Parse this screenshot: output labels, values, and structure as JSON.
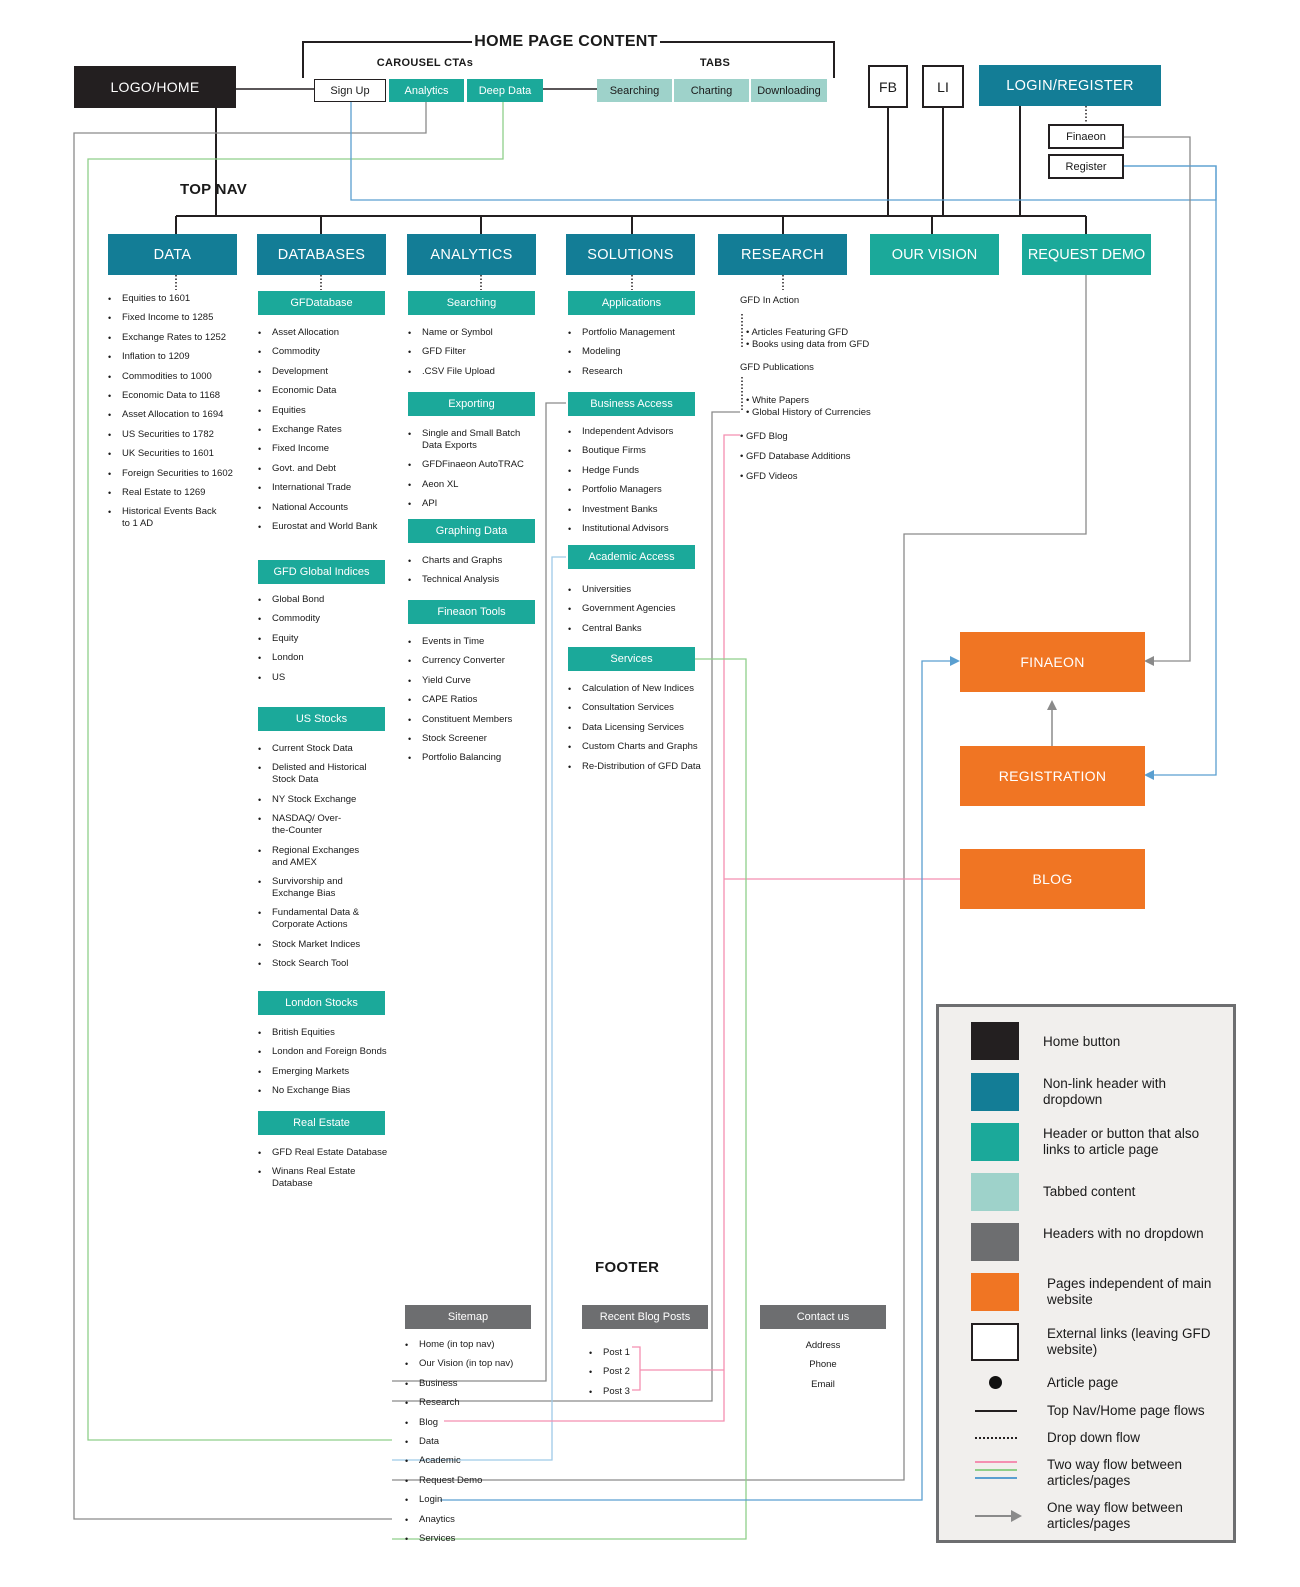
{
  "home_content": {
    "title": "HOME PAGE CONTENT",
    "carousel_label": "CAROUSEL CTAs",
    "tabs_label": "TABS",
    "cta_signup": "Sign Up",
    "cta_analytics": "Analytics",
    "cta_deep_data": "Deep Data",
    "tab_searching": "Searching",
    "tab_charting": "Charting",
    "tab_downloading": "Downloading"
  },
  "logo_home": "LOGO/HOME",
  "fb": "FB",
  "li": "LI",
  "login_register": "LOGIN/REGISTER",
  "finaeon_link": "Finaeon",
  "register_link": "Register",
  "top_nav_label": "TOP NAV",
  "nav": {
    "data": "DATA",
    "databases": "DATABASES",
    "analytics": "ANALYTICS",
    "solutions": "SOLUTIONS",
    "research": "RESEARCH",
    "our_vision": "OUR VISION",
    "request_demo": "REQUEST DEMO"
  },
  "data_items": [
    "Equities to 1601",
    "Fixed Income to 1285",
    "Exchange Rates to 1252",
    "Inflation to 1209",
    "Commodities to 1000",
    "Economic Data to 1168",
    "Asset Allocation to 1694",
    "US Securities to 1782",
    "UK Securities to 1601",
    "Foreign Securities to 1602",
    "Real Estate to 1269",
    "Historical Events Back to 1 AD"
  ],
  "databases": {
    "gfdatabase": "GFDatabase",
    "gfdatabase_items": [
      "Asset Allocation",
      "Commodity",
      "Development",
      "Economic Data",
      "Equities",
      "Exchange Rates",
      "Fixed Income",
      "Govt. and Debt",
      "International Trade",
      "National Accounts",
      "Eurostat and World Bank"
    ],
    "global_indices": "GFD Global Indices",
    "global_indices_items": [
      "Global Bond",
      "Commodity",
      "Equity",
      "London",
      "US"
    ],
    "us_stocks": "US Stocks",
    "us_stocks_items": [
      "Current Stock Data",
      "Delisted and Historical Stock Data",
      "NY Stock Exchange",
      "NASDAQ/ Over-the-Counter",
      "Regional Exchanges and AMEX",
      "Survivorship and Exchange Bias",
      "Fundamental Data & Corporate Actions",
      "Stock Market Indices",
      "Stock Search Tool"
    ],
    "london_stocks": "London Stocks",
    "london_stocks_items": [
      "British Equities",
      "London and Foreign Bonds",
      "Emerging Markets",
      "No Exchange Bias"
    ],
    "real_estate": "Real Estate",
    "real_estate_items": [
      "GFD Real Estate Database",
      "Winans Real Estate Database"
    ]
  },
  "analytics": {
    "searching": "Searching",
    "searching_items": [
      "Name or Symbol",
      "GFD Filter",
      ".CSV File Upload"
    ],
    "exporting": "Exporting",
    "exporting_items": [
      "Single and Small Batch Data Exports",
      "GFDFinaeon AutoTRAC",
      "Aeon XL",
      "API"
    ],
    "graphing": "Graphing Data",
    "graphing_items": [
      "Charts and Graphs",
      "Technical Analysis"
    ],
    "fineaon_tools": "Fineaon Tools",
    "fineaon_tools_items": [
      "Events in Time",
      "Currency Converter",
      "Yield Curve",
      "CAPE Ratios",
      "Constituent Members",
      "Stock Screener",
      "Portfolio Balancing"
    ]
  },
  "solutions": {
    "applications": "Applications",
    "applications_items": [
      "Portfolio Management",
      "Modeling",
      "Research"
    ],
    "business": "Business Access",
    "business_items": [
      "Independent Advisors",
      "Boutique Firms",
      "Hedge Funds",
      "Portfolio Managers",
      "Investment Banks",
      "Institutional Advisors"
    ],
    "academic": "Academic Access",
    "academic_items": [
      "Universities",
      "Government Agencies",
      "Central Banks"
    ],
    "services": "Services",
    "services_items": [
      "Calculation of New Indices",
      "Consultation Services",
      "Data Licensing Services",
      "Custom Charts and Graphs",
      "Re-Distribution of GFD Data"
    ]
  },
  "research": {
    "in_action": "GFD In Action",
    "in_action_items": [
      "Articles Featuring GFD",
      "Books using data from GFD"
    ],
    "publications": "GFD Publications",
    "publications_items": [
      "White Papers",
      "Global History of Currencies"
    ],
    "blog": "GFD Blog",
    "db_additions": "GFD Database Additions",
    "videos": "GFD Videos"
  },
  "pages": {
    "finaeon": "FINAEON",
    "registration": "REGISTRATION",
    "blog": "BLOG"
  },
  "footer": {
    "title": "FOOTER",
    "sitemap": "Sitemap",
    "sitemap_items": [
      "Home (in top nav)",
      "Our Vision (in top nav)",
      "Business",
      "Research",
      "Blog",
      "Data",
      "Academic",
      "Request Demo",
      "Login",
      "Anaytics",
      "Services"
    ],
    "recent_posts": "Recent Blog Posts",
    "posts": [
      "Post 1",
      "Post 2",
      "Post 3"
    ],
    "contact": "Contact us",
    "contact_items": [
      "Address",
      "Phone",
      "Email"
    ]
  },
  "legend": {
    "home_button": "Home button",
    "nonlink_header": "Non-link header with dropdown",
    "header_article": "Header or button that also links to article page",
    "tabbed": "Tabbed content",
    "no_dropdown": "Headers with no dropdown",
    "independent": "Pages independent of main website",
    "external": "External links (leaving GFD website)",
    "article": "Article page",
    "topnav_flow": "Top Nav/Home page flows",
    "dropdown_flow": "Drop down flow",
    "two_way": "Two way flow between articles/pages",
    "one_way": "One way flow between articles/pages"
  },
  "colors": {
    "home": "#231f20",
    "nonlink": "#137d96",
    "article_header": "#1ba99a",
    "tabbed": "#9ed2ca",
    "no_dropdown": "#6d6e70",
    "independent": "#f07523",
    "flow_pink": "#f48fb1",
    "flow_green": "#8fcf8a",
    "flow_blue": "#5a9fd0",
    "flow_grey": "#8a8a8a"
  }
}
